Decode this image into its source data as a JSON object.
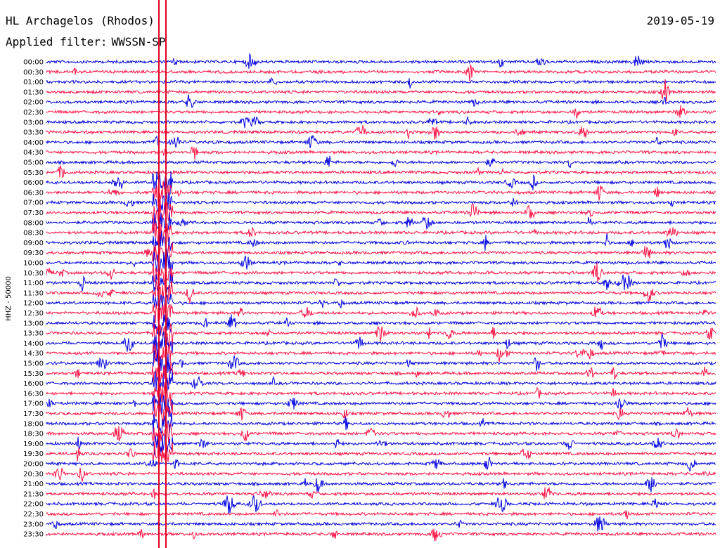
{
  "header": {
    "station": "HL Archagelos (Rhodos)",
    "filter_label": "Applied filter:",
    "filter_value": "WWSSN-SP",
    "date": "2019-05-19"
  },
  "chart_data": {
    "type": "line",
    "ylabel": "HHZ - 50000",
    "row_labels": [
      "00:00",
      "00:30",
      "01:00",
      "01:30",
      "02:00",
      "02:30",
      "03:00",
      "03:30",
      "04:00",
      "04:30",
      "05:00",
      "05:30",
      "06:00",
      "06:30",
      "07:00",
      "07:30",
      "08:00",
      "08:30",
      "09:00",
      "09:30",
      "10:00",
      "10:30",
      "11:00",
      "11:30",
      "12:00",
      "12:30",
      "13:00",
      "13:30",
      "14:00",
      "14:30",
      "15:00",
      "15:30",
      "16:00",
      "16:30",
      "17:00",
      "17:30",
      "18:00",
      "18:30",
      "19:00",
      "19:30",
      "20:00",
      "20:30",
      "21:00",
      "21:30",
      "22:00",
      "22:30",
      "23:00",
      "23:30"
    ],
    "colors": {
      "even": "#0000e0",
      "odd": "#ff1044",
      "marker": "#e00020"
    }
  }
}
